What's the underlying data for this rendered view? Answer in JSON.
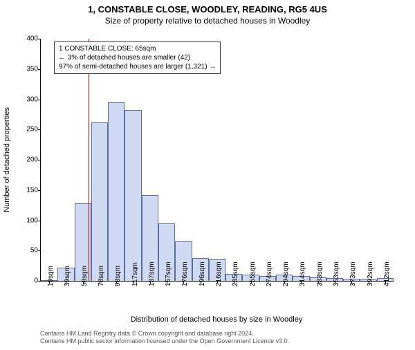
{
  "titles": {
    "line1": "1, CONSTABLE CLOSE, WOODLEY, READING, RG5 4US",
    "line2": "Size of property relative to detached houses in Woodley"
  },
  "chart": {
    "type": "histogram",
    "ylabel": "Number of detached properties",
    "xlabel": "Distribution of detached houses by size in Woodley",
    "ylim": [
      0,
      400
    ],
    "yticks": [
      0,
      50,
      100,
      150,
      200,
      250,
      300,
      350,
      400
    ],
    "categories": [
      "19sqm",
      "39sqm",
      "58sqm",
      "78sqm",
      "98sqm",
      "117sqm",
      "137sqm",
      "157sqm",
      "176sqm",
      "196sqm",
      "216sqm",
      "235sqm",
      "255sqm",
      "274sqm",
      "294sqm",
      "314sqm",
      "333sqm",
      "353sqm",
      "373sqm",
      "392sqm",
      "412sqm"
    ],
    "values": [
      0,
      22,
      128,
      262,
      295,
      282,
      142,
      95,
      65,
      38,
      35,
      12,
      10,
      8,
      10,
      8,
      6,
      5,
      3,
      2,
      5
    ],
    "bar_fill": "#cfd9f1",
    "bar_stroke": "#5c6b9d",
    "bar_width_ratio": 1.0,
    "background_color": "#ffffff",
    "axis_color": "#000000",
    "marker": {
      "color": "#d00000",
      "position_index": 2.35
    }
  },
  "annotation": {
    "line1": "1 CONSTABLE CLOSE: 65sqm",
    "line2": "← 3% of detached houses are smaller (42)",
    "line3": "97% of semi-detached houses are larger (1,321) →"
  },
  "footer": {
    "line1": "Contains HM Land Registry data © Crown copyright and database right 2024.",
    "line2": "Contains HM public sector information licensed under the Open Government Licence v3.0."
  }
}
